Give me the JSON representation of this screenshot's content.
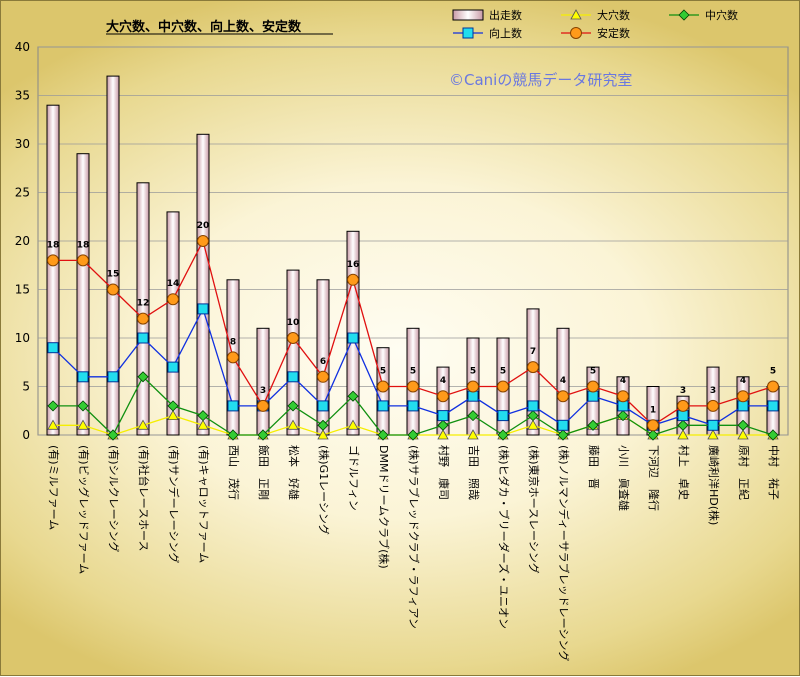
{
  "chart_data": {
    "type": "bar",
    "title": "大穴数、中穴数、向上数、安定数",
    "watermark": "©Caniの競馬データ研究室",
    "legend_position": "top-right",
    "grid": true,
    "ylim": [
      0,
      40
    ],
    "yticks": [
      0,
      5,
      10,
      15,
      20,
      25,
      30,
      35,
      40
    ],
    "categories": [
      "(有)ミルファーム",
      "(有)ビッグレッドファーム",
      "(有)シルクレーシング",
      "(有)社台レースホース",
      "(有)サンデーレーシング",
      "(有)キャロットファーム",
      "西山　茂行",
      "飯田　正剛",
      "松本　好雄",
      "(株)G1レーシング",
      "ゴドルフィン",
      "DMMドリームクラブ(株)",
      "(株)サラブレッドクラブ・ラフィアン",
      "村野　康司",
      "吉田　照哉",
      "(株)ヒダカ・ブリーダーズ・ユニオン",
      "(株)東京ホースレーシング",
      "(株)ノルマンディーサラブレッドレーシング",
      "藤田　晋",
      "小川　眞査雄",
      "下河辺　隆行",
      "村上　卓史",
      "廣崎利洋HD(株)",
      "原村　正紀",
      "中村　祐子"
    ],
    "series": [
      {
        "name": "出走数",
        "kind": "bar",
        "color": "#e8c8d0",
        "values": [
          34,
          29,
          37,
          26,
          23,
          31,
          16,
          11,
          17,
          16,
          21,
          9,
          11,
          7,
          10,
          10,
          13,
          11,
          7,
          6,
          5,
          4,
          7,
          6,
          5
        ]
      },
      {
        "name": "大穴数",
        "kind": "line",
        "marker": "triangle",
        "color": "#f5ee00",
        "values": [
          1,
          1,
          0,
          1,
          2,
          1,
          0,
          0,
          1,
          0,
          1,
          0,
          0,
          0,
          0,
          0,
          1,
          0,
          1,
          2,
          0,
          0,
          0,
          0,
          0
        ]
      },
      {
        "name": "中穴数",
        "kind": "line",
        "marker": "diamond",
        "color": "#109010",
        "values": [
          3,
          3,
          0,
          6,
          3,
          2,
          0,
          0,
          3,
          1,
          4,
          0,
          0,
          1,
          2,
          0,
          2,
          0,
          1,
          2,
          0,
          1,
          1,
          1,
          0
        ]
      },
      {
        "name": "向上数",
        "kind": "line",
        "marker": "square",
        "color": "#1030e0",
        "values": [
          9,
          6,
          6,
          10,
          7,
          13,
          3,
          3,
          6,
          3,
          10,
          3,
          3,
          2,
          4,
          2,
          3,
          1,
          4,
          3,
          1,
          2,
          1,
          3,
          3
        ]
      },
      {
        "name": "安定数",
        "kind": "line",
        "marker": "circle",
        "color": "#e01010",
        "values": [
          18,
          18,
          15,
          12,
          14,
          20,
          8,
          3,
          10,
          6,
          16,
          5,
          5,
          4,
          5,
          5,
          7,
          4,
          5,
          4,
          1,
          3,
          3,
          4,
          5
        ]
      }
    ]
  }
}
